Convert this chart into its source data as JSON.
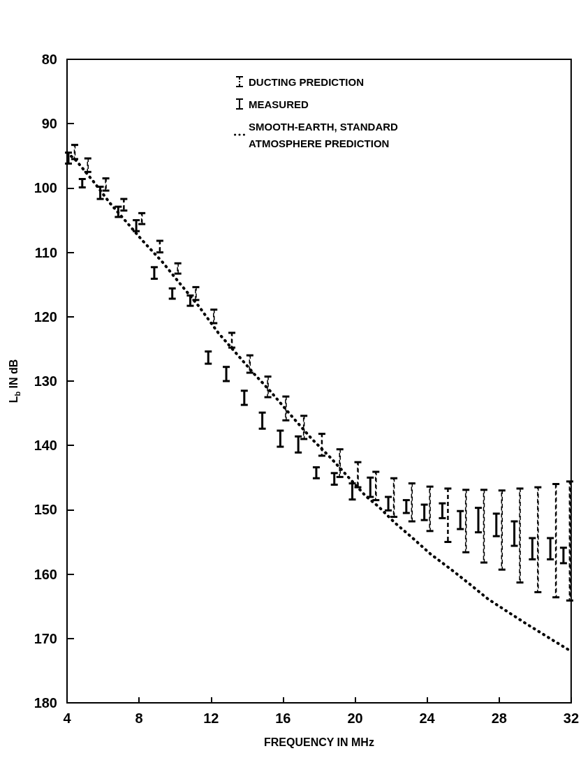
{
  "chart_data": {
    "type": "bar",
    "xlabel": "FREQUENCY IN MHz",
    "ylabel": "L$_{b}$ IN dB",
    "xlim": [
      4,
      32
    ],
    "xticks": [
      4,
      8,
      12,
      16,
      20,
      24,
      28,
      32
    ],
    "ylim": [
      180,
      80
    ],
    "yticks": [
      80,
      90,
      100,
      110,
      120,
      130,
      140,
      150,
      160,
      170,
      180
    ],
    "grid": false,
    "legend": "top",
    "x": [
      4,
      5,
      6,
      7,
      8,
      9,
      10,
      11,
      12,
      13,
      14,
      15,
      16,
      17,
      18,
      19,
      20,
      21,
      22,
      23,
      24,
      25,
      26,
      27,
      28,
      29,
      30,
      31,
      32
    ],
    "series": [
      {
        "name": "DUCTING PREDICTION",
        "color": "#000000",
        "line_style": "dashed",
        "base": [
          93.3,
          95.4,
          98.5,
          101.7,
          103.9,
          108.2,
          111.7,
          115.4,
          118.9,
          122.5,
          126.0,
          129.3,
          132.4,
          135.4,
          138.2,
          140.6,
          142.6,
          144.1,
          145.1,
          145.9,
          146.4,
          146.7,
          146.9,
          146.9,
          147.0,
          146.7,
          146.5,
          146.0,
          145.6
        ],
        "values": [
          2.2,
          2.1,
          1.9,
          1.8,
          1.7,
          1.8,
          1.6,
          2.0,
          2.1,
          2.3,
          2.7,
          3.2,
          3.7,
          3.6,
          3.4,
          4.3,
          3.9,
          4.4,
          6.0,
          5.9,
          6.9,
          8.3,
          9.7,
          11.3,
          12.3,
          14.6,
          16.3,
          17.6,
          18.5
        ]
      },
      {
        "name": "MEASURED",
        "color": "#000000",
        "line_style": "solid",
        "base": [
          94.5,
          98.6,
          99.8,
          102.9,
          105.0,
          112.3,
          115.6,
          116.7,
          125.4,
          127.8,
          131.5,
          134.9,
          137.7,
          138.6,
          143.4,
          144.3,
          145.9,
          145.0,
          148.0,
          148.5,
          149.2,
          149.0,
          150.2,
          149.7,
          150.6,
          151.8,
          154.4,
          154.4,
          155.9
        ],
        "values": [
          1.7,
          1.3,
          1.9,
          1.6,
          1.7,
          1.8,
          1.6,
          1.6,
          1.9,
          2.2,
          2.2,
          2.5,
          2.5,
          2.5,
          1.7,
          1.8,
          2.5,
          3.0,
          2.1,
          2.0,
          2.4,
          2.3,
          2.8,
          3.8,
          3.5,
          3.8,
          3.3,
          3.3,
          2.4
        ]
      },
      {
        "name": "SMOOTH-EARTH, STANDARD ATMOSPHERE PREDICTION",
        "type": "line",
        "color": "#000000",
        "line_style": "dotted",
        "x": [
          4,
          4.5,
          5.5,
          6.4,
          7.4,
          8.2,
          9.3,
          10.2,
          11.3,
          12.4,
          13.4,
          14.4,
          15.3,
          16.4,
          17.6,
          18.6,
          20.6,
          21.3,
          22.2,
          23.2,
          24.2,
          25.3,
          26.3,
          27.4,
          28.5,
          29.5,
          31.0,
          32
        ],
        "values": [
          94.5,
          95.7,
          99.1,
          102.4,
          105.6,
          108.2,
          111.5,
          114.6,
          118.3,
          122.5,
          125.7,
          128.9,
          131.6,
          135.2,
          139.0,
          141.8,
          147.9,
          149.5,
          152.0,
          154.4,
          156.9,
          159.2,
          161.4,
          163.9,
          165.9,
          167.7,
          170.3,
          172.0
        ]
      }
    ]
  }
}
